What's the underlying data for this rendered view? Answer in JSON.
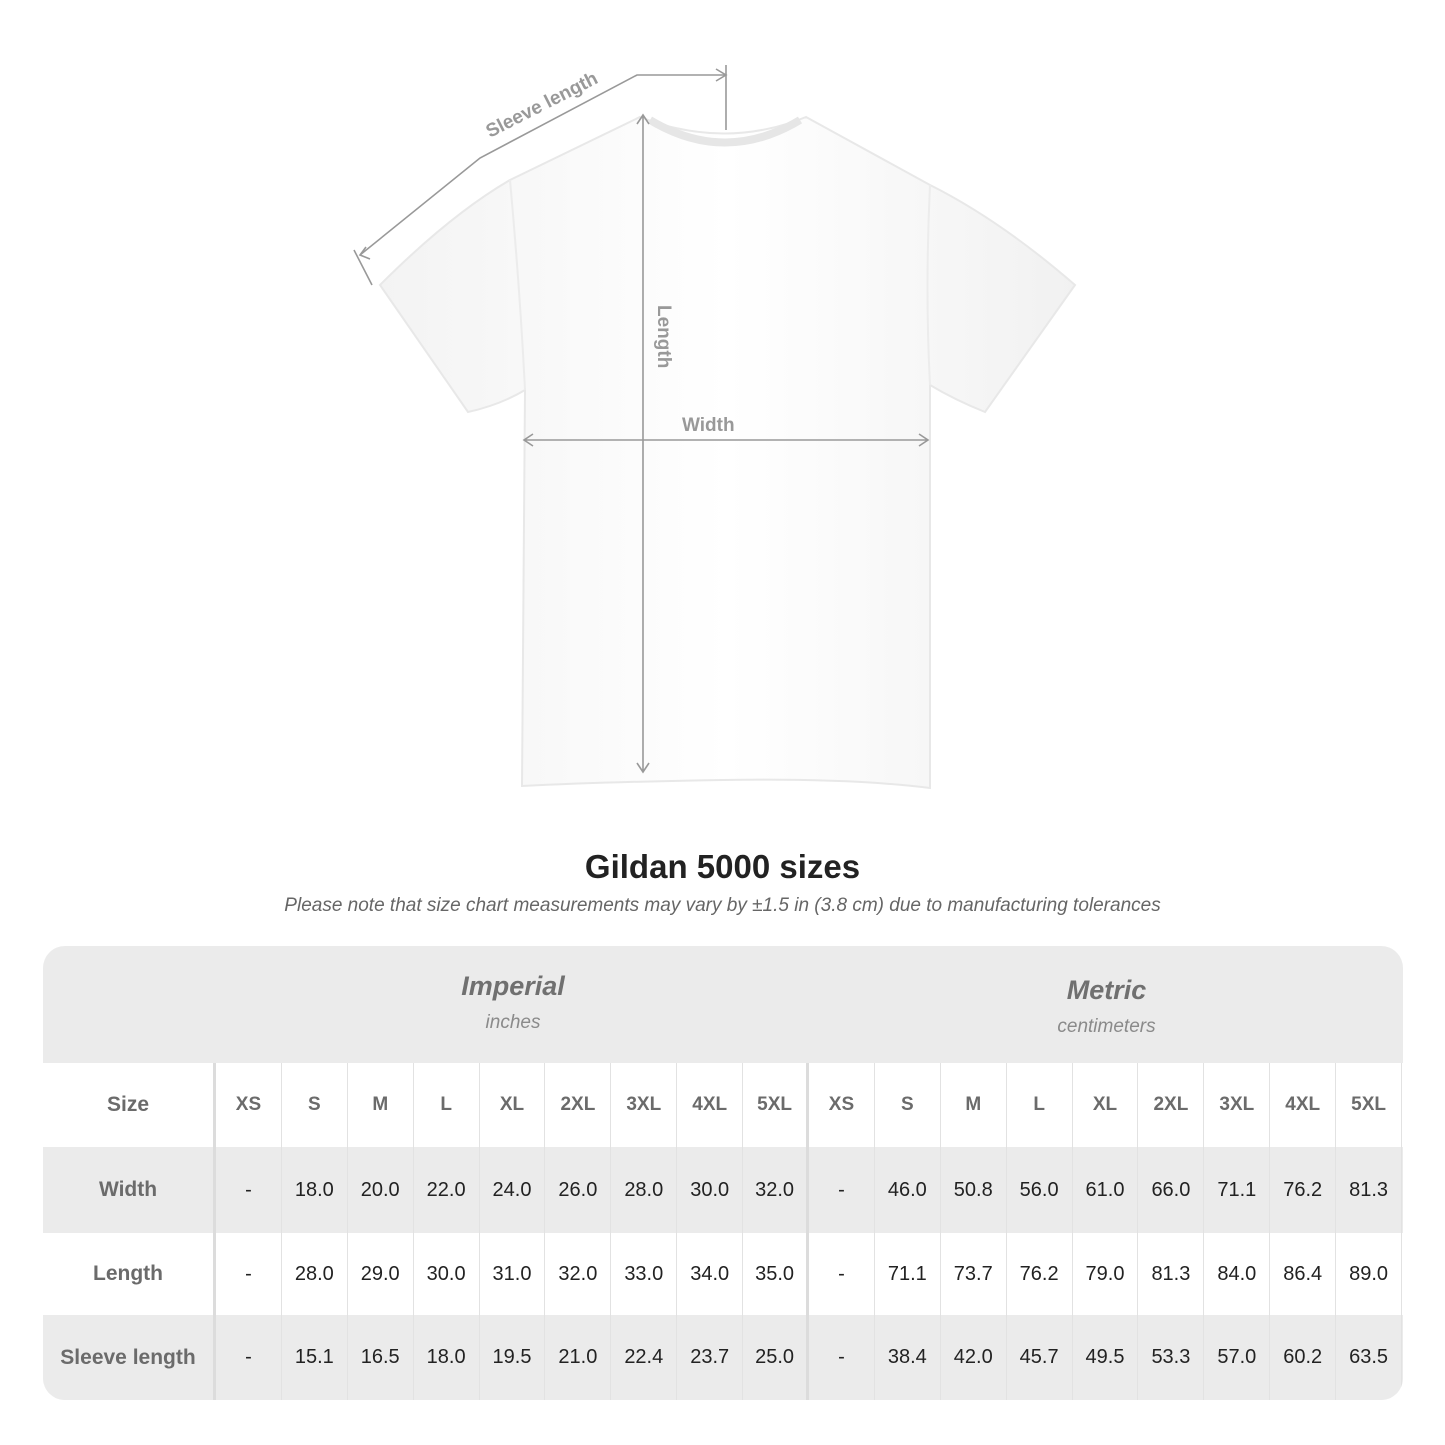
{
  "diagram": {
    "labels": {
      "sleeve": "Sleeve length",
      "length": "Length",
      "width": "Width"
    },
    "line_color": "#999999"
  },
  "title": "Gildan 5000 sizes",
  "subtitle": "Please note that size chart measurements may vary by ±1.5 in (3.8 cm) due to manufacturing tolerances",
  "table": {
    "imperial": {
      "label": "Imperial",
      "unit": "inches"
    },
    "metric": {
      "label": "Metric",
      "unit": "centimeters"
    },
    "size_label": "Size",
    "sizes": [
      "XS",
      "S",
      "M",
      "L",
      "XL",
      "2XL",
      "3XL",
      "4XL",
      "5XL"
    ],
    "rows": [
      {
        "label": "Width",
        "imperial": [
          "-",
          "18.0",
          "20.0",
          "22.0",
          "24.0",
          "26.0",
          "28.0",
          "30.0",
          "32.0"
        ],
        "metric": [
          "-",
          "46.0",
          "50.8",
          "56.0",
          "61.0",
          "66.0",
          "71.1",
          "76.2",
          "81.3"
        ]
      },
      {
        "label": "Length",
        "imperial": [
          "-",
          "28.0",
          "29.0",
          "30.0",
          "31.0",
          "32.0",
          "33.0",
          "34.0",
          "35.0"
        ],
        "metric": [
          "-",
          "71.1",
          "73.7",
          "76.2",
          "79.0",
          "81.3",
          "84.0",
          "86.4",
          "89.0"
        ]
      },
      {
        "label": "Sleeve length",
        "imperial": [
          "-",
          "15.1",
          "16.5",
          "18.0",
          "19.5",
          "21.0",
          "22.4",
          "23.7",
          "25.0"
        ],
        "metric": [
          "-",
          "38.4",
          "42.0",
          "45.7",
          "49.5",
          "53.3",
          "57.0",
          "60.2",
          "63.5"
        ]
      }
    ],
    "header_bg": "#ebebeb",
    "text_color": "#222222",
    "label_color": "#6b6b6b"
  }
}
